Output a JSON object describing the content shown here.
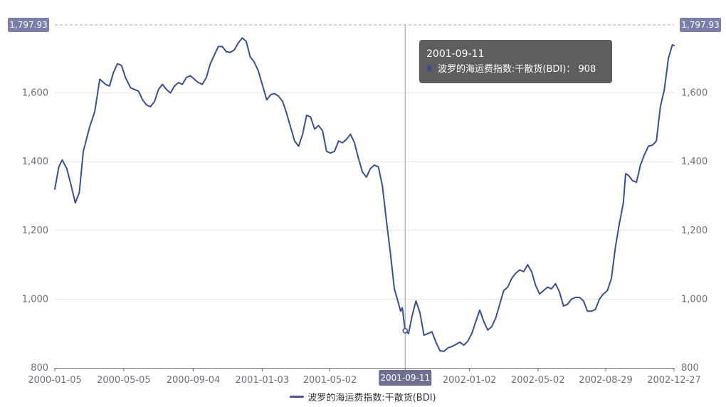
{
  "chart_data": {
    "type": "line",
    "series": [
      {
        "name": "波罗的海运费指数:干散货(BDI)",
        "color": "#3c4f8c",
        "points": [
          [
            "2000-01-05",
            1320
          ],
          [
            "2000-01-12",
            1385
          ],
          [
            "2000-01-18",
            1405
          ],
          [
            "2000-01-26",
            1380
          ],
          [
            "2000-02-02",
            1335
          ],
          [
            "2000-02-10",
            1280
          ],
          [
            "2000-02-17",
            1310
          ],
          [
            "2000-02-24",
            1430
          ],
          [
            "2000-03-06",
            1500
          ],
          [
            "2000-03-15",
            1545
          ],
          [
            "2000-03-24",
            1640
          ],
          [
            "2000-04-03",
            1625
          ],
          [
            "2000-04-10",
            1620
          ],
          [
            "2000-04-17",
            1660
          ],
          [
            "2000-04-24",
            1685
          ],
          [
            "2000-05-01",
            1680
          ],
          [
            "2000-05-08",
            1645
          ],
          [
            "2000-05-17",
            1615
          ],
          [
            "2000-05-24",
            1610
          ],
          [
            "2000-05-31",
            1605
          ],
          [
            "2000-06-07",
            1580
          ],
          [
            "2000-06-14",
            1565
          ],
          [
            "2000-06-21",
            1560
          ],
          [
            "2000-06-28",
            1575
          ],
          [
            "2000-07-05",
            1610
          ],
          [
            "2000-07-12",
            1625
          ],
          [
            "2000-07-19",
            1610
          ],
          [
            "2000-07-26",
            1600
          ],
          [
            "2000-08-02",
            1620
          ],
          [
            "2000-08-09",
            1630
          ],
          [
            "2000-08-16",
            1625
          ],
          [
            "2000-08-23",
            1645
          ],
          [
            "2000-08-30",
            1650
          ],
          [
            "2000-09-06",
            1640
          ],
          [
            "2000-09-13",
            1630
          ],
          [
            "2000-09-20",
            1625
          ],
          [
            "2000-09-27",
            1645
          ],
          [
            "2000-10-04",
            1685
          ],
          [
            "2000-10-11",
            1710
          ],
          [
            "2000-10-18",
            1735
          ],
          [
            "2000-10-25",
            1735
          ],
          [
            "2000-11-01",
            1720
          ],
          [
            "2000-11-08",
            1718
          ],
          [
            "2000-11-15",
            1725
          ],
          [
            "2000-11-22",
            1745
          ],
          [
            "2000-11-29",
            1760
          ],
          [
            "2000-12-06",
            1750
          ],
          [
            "2000-12-13",
            1705
          ],
          [
            "2000-12-20",
            1690
          ],
          [
            "2000-12-27",
            1665
          ],
          [
            "2001-01-04",
            1620
          ],
          [
            "2001-01-11",
            1580
          ],
          [
            "2001-01-18",
            1595
          ],
          [
            "2001-01-25",
            1598
          ],
          [
            "2001-02-01",
            1590
          ],
          [
            "2001-02-08",
            1575
          ],
          [
            "2001-02-15",
            1540
          ],
          [
            "2001-02-22",
            1500
          ],
          [
            "2001-03-01",
            1460
          ],
          [
            "2001-03-08",
            1445
          ],
          [
            "2001-03-15",
            1480
          ],
          [
            "2001-03-22",
            1535
          ],
          [
            "2001-03-29",
            1530
          ],
          [
            "2001-04-05",
            1495
          ],
          [
            "2001-04-12",
            1505
          ],
          [
            "2001-04-19",
            1490
          ],
          [
            "2001-04-26",
            1430
          ],
          [
            "2001-05-03",
            1425
          ],
          [
            "2001-05-10",
            1430
          ],
          [
            "2001-05-17",
            1460
          ],
          [
            "2001-05-24",
            1455
          ],
          [
            "2001-05-31",
            1465
          ],
          [
            "2001-06-07",
            1480
          ],
          [
            "2001-06-14",
            1455
          ],
          [
            "2001-06-21",
            1410
          ],
          [
            "2001-06-28",
            1370
          ],
          [
            "2001-07-05",
            1355
          ],
          [
            "2001-07-12",
            1380
          ],
          [
            "2001-07-19",
            1390
          ],
          [
            "2001-07-26",
            1385
          ],
          [
            "2001-08-02",
            1330
          ],
          [
            "2001-08-09",
            1230
          ],
          [
            "2001-08-16",
            1135
          ],
          [
            "2001-08-23",
            1030
          ],
          [
            "2001-08-30",
            990
          ],
          [
            "2001-09-03",
            965
          ],
          [
            "2001-09-06",
            975
          ],
          [
            "2001-09-11",
            908
          ],
          [
            "2001-09-17",
            900
          ],
          [
            "2001-09-23",
            950
          ],
          [
            "2001-09-30",
            995
          ],
          [
            "2001-10-07",
            960
          ],
          [
            "2001-10-14",
            895
          ],
          [
            "2001-10-21",
            900
          ],
          [
            "2001-10-28",
            905
          ],
          [
            "2001-11-04",
            875
          ],
          [
            "2001-11-11",
            850
          ],
          [
            "2001-11-18",
            848
          ],
          [
            "2001-11-25",
            858
          ],
          [
            "2001-12-02",
            862
          ],
          [
            "2001-12-09",
            868
          ],
          [
            "2001-12-16",
            875
          ],
          [
            "2001-12-23",
            866
          ],
          [
            "2001-12-30",
            878
          ],
          [
            "2002-01-06",
            900
          ],
          [
            "2002-01-13",
            935
          ],
          [
            "2002-01-20",
            968
          ],
          [
            "2002-01-27",
            935
          ],
          [
            "2002-02-03",
            910
          ],
          [
            "2002-02-10",
            920
          ],
          [
            "2002-02-17",
            945
          ],
          [
            "2002-02-24",
            985
          ],
          [
            "2002-03-03",
            1025
          ],
          [
            "2002-03-10",
            1035
          ],
          [
            "2002-03-17",
            1060
          ],
          [
            "2002-03-24",
            1075
          ],
          [
            "2002-03-31",
            1085
          ],
          [
            "2002-04-07",
            1080
          ],
          [
            "2002-04-14",
            1100
          ],
          [
            "2002-04-21",
            1080
          ],
          [
            "2002-04-28",
            1040
          ],
          [
            "2002-05-05",
            1015
          ],
          [
            "2002-05-12",
            1025
          ],
          [
            "2002-05-19",
            1035
          ],
          [
            "2002-05-26",
            1030
          ],
          [
            "2002-06-02",
            1045
          ],
          [
            "2002-06-09",
            1020
          ],
          [
            "2002-06-16",
            980
          ],
          [
            "2002-06-23",
            985
          ],
          [
            "2002-06-30",
            1000
          ],
          [
            "2002-07-07",
            1005
          ],
          [
            "2002-07-14",
            1005
          ],
          [
            "2002-07-21",
            995
          ],
          [
            "2002-07-28",
            965
          ],
          [
            "2002-08-04",
            965
          ],
          [
            "2002-08-11",
            970
          ],
          [
            "2002-08-18",
            1000
          ],
          [
            "2002-08-25",
            1015
          ],
          [
            "2002-09-01",
            1025
          ],
          [
            "2002-09-08",
            1060
          ],
          [
            "2002-09-15",
            1150
          ],
          [
            "2002-09-22",
            1220
          ],
          [
            "2002-09-29",
            1280
          ],
          [
            "2002-10-03",
            1365
          ],
          [
            "2002-10-08",
            1360
          ],
          [
            "2002-10-15",
            1345
          ],
          [
            "2002-10-22",
            1340
          ],
          [
            "2002-10-29",
            1390
          ],
          [
            "2002-11-05",
            1420
          ],
          [
            "2002-11-12",
            1445
          ],
          [
            "2002-11-19",
            1448
          ],
          [
            "2002-11-26",
            1460
          ],
          [
            "2002-12-03",
            1560
          ],
          [
            "2002-12-10",
            1610
          ],
          [
            "2002-12-17",
            1700
          ],
          [
            "2002-12-24",
            1740
          ],
          [
            "2002-12-27",
            1738
          ]
        ]
      }
    ],
    "x_axis": {
      "type": "time",
      "range": [
        "2000-01-05",
        "2002-12-27"
      ],
      "tick_labels": [
        "2000-01-05",
        "2000-05-05",
        "2000-09-04",
        "2001-01-03",
        "2001-05-02",
        "2001-09-11",
        "2002-01-02",
        "2002-05-02",
        "2002-08-29",
        "2002-12-27"
      ]
    },
    "y_axis": {
      "range": [
        800,
        1797.93
      ],
      "ticks": [
        800,
        1000,
        1200,
        1400,
        1600
      ],
      "tick_labels": [
        "800",
        "1,000",
        "1,200",
        "1,400",
        "1,600"
      ],
      "max_label": "1,797.93",
      "both_sides": true
    },
    "grid": "horizontal",
    "legend_placement": "bottom-center",
    "tooltip": {
      "date": "2001-09-11",
      "series_label": "波罗的海运费指数:干散货(BDI)",
      "separator": "：",
      "value": "908"
    },
    "axis_pointer_label": "2001-09-11"
  },
  "legend": {
    "label": "波罗的海运费指数:干散货(BDI)"
  }
}
